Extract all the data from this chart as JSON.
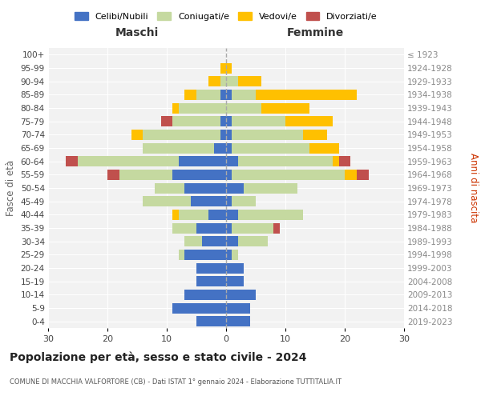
{
  "age_groups": [
    "0-4",
    "5-9",
    "10-14",
    "15-19",
    "20-24",
    "25-29",
    "30-34",
    "35-39",
    "40-44",
    "45-49",
    "50-54",
    "55-59",
    "60-64",
    "65-69",
    "70-74",
    "75-79",
    "80-84",
    "85-89",
    "90-94",
    "95-99",
    "100+"
  ],
  "birth_years": [
    "2019-2023",
    "2014-2018",
    "2009-2013",
    "2004-2008",
    "1999-2003",
    "1994-1998",
    "1989-1993",
    "1984-1988",
    "1979-1983",
    "1974-1978",
    "1969-1973",
    "1964-1968",
    "1959-1963",
    "1954-1958",
    "1949-1953",
    "1944-1948",
    "1939-1943",
    "1934-1938",
    "1929-1933",
    "1924-1928",
    "≤ 1923"
  ],
  "males": {
    "celibi": [
      5,
      9,
      7,
      5,
      5,
      7,
      4,
      5,
      3,
      6,
      7,
      9,
      8,
      2,
      1,
      1,
      0,
      1,
      0,
      0,
      0
    ],
    "coniugati": [
      0,
      0,
      0,
      0,
      0,
      1,
      3,
      4,
      5,
      8,
      5,
      9,
      17,
      12,
      13,
      8,
      8,
      4,
      1,
      0,
      0
    ],
    "vedovi": [
      0,
      0,
      0,
      0,
      0,
      0,
      0,
      0,
      1,
      0,
      0,
      0,
      0,
      0,
      2,
      0,
      1,
      2,
      2,
      1,
      0
    ],
    "divorziati": [
      0,
      0,
      0,
      0,
      0,
      0,
      0,
      0,
      0,
      0,
      0,
      2,
      2,
      0,
      0,
      2,
      0,
      0,
      0,
      0,
      0
    ]
  },
  "females": {
    "nubili": [
      4,
      4,
      5,
      3,
      3,
      1,
      2,
      1,
      2,
      1,
      3,
      1,
      2,
      1,
      1,
      1,
      0,
      1,
      0,
      0,
      0
    ],
    "coniugate": [
      0,
      0,
      0,
      0,
      0,
      1,
      5,
      7,
      11,
      4,
      9,
      19,
      16,
      13,
      12,
      9,
      6,
      4,
      2,
      0,
      0
    ],
    "vedove": [
      0,
      0,
      0,
      0,
      0,
      0,
      0,
      0,
      0,
      0,
      0,
      2,
      1,
      5,
      4,
      8,
      8,
      17,
      4,
      1,
      0
    ],
    "divorziate": [
      0,
      0,
      0,
      0,
      0,
      0,
      0,
      1,
      0,
      0,
      0,
      2,
      2,
      0,
      0,
      0,
      0,
      0,
      0,
      0,
      0
    ]
  },
  "color_celibi": "#4472c4",
  "color_coniugati": "#c5d9a0",
  "color_vedovi": "#ffc000",
  "color_divorziati": "#c0504d",
  "xlim": 30,
  "title_main": "Popolazione per età, sesso e stato civile - 2024",
  "title_sub": "COMUNE DI MACCHIA VALFORTORE (CB) - Dati ISTAT 1° gennaio 2024 - Elaborazione TUTTITALIA.IT",
  "ylabel_left": "Fasce di età",
  "ylabel_right": "Anni di nascita",
  "xlabel_maschi": "Maschi",
  "xlabel_femmine": "Femmine"
}
